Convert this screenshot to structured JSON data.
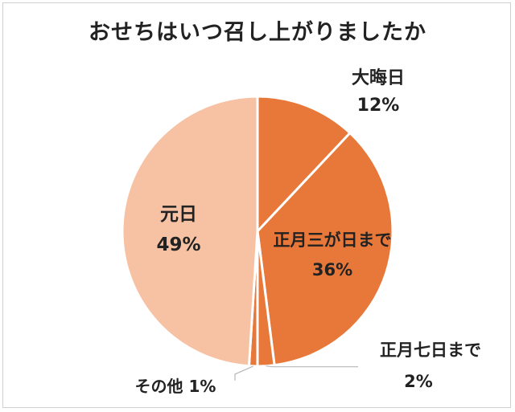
{
  "colors": {
    "dark_slice": "#E8783A",
    "light_slice": "#F6C2A3",
    "slice_border": "#ffffff",
    "leader_line": "#b8b8b8",
    "text": "#222222"
  },
  "chart_data": {
    "type": "pie",
    "title": "おせちはいつ召し上がりましたか",
    "slices": [
      {
        "label": "大晦日",
        "value": 12,
        "value_label": "12%",
        "color": "#E8783A"
      },
      {
        "label": "正月三が日まで",
        "value": 36,
        "value_label": "36%",
        "color": "#E8783A"
      },
      {
        "label": "正月七日まで",
        "value": 2,
        "value_label": "2%",
        "color": "#E8783A"
      },
      {
        "label": "その他",
        "value": 1,
        "value_label": "1%",
        "color": "#E8783A"
      },
      {
        "label": "元日",
        "value": 49,
        "value_label": "49%",
        "color": "#F6C2A3"
      }
    ],
    "start": "12 o'clock",
    "direction": "clockwise"
  }
}
